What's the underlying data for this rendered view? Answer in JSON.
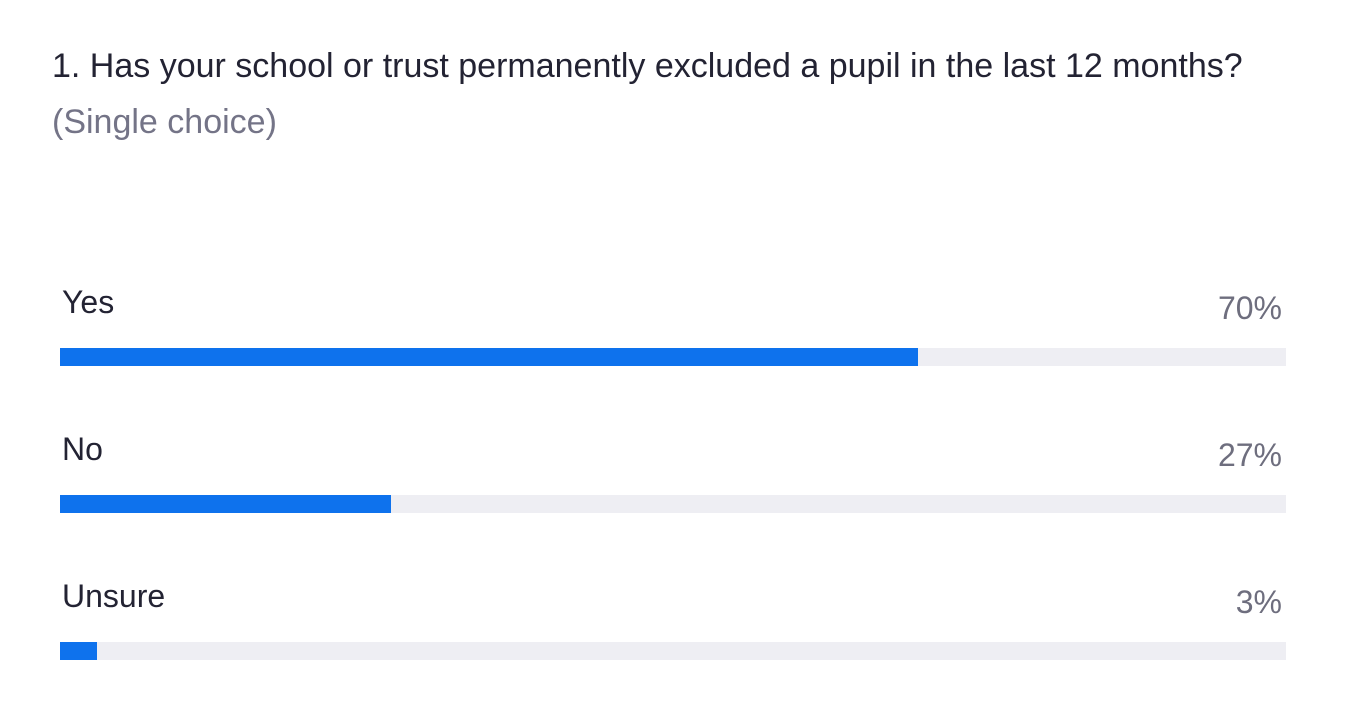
{
  "chart_data": {
    "type": "bar",
    "orientation": "horizontal",
    "title": "1. Has your school or trust permanently excluded a pupil in the last 12 months?",
    "subtitle": "(Single choice)",
    "categories": [
      "Yes",
      "No",
      "Unsure"
    ],
    "values": [
      70,
      27,
      3
    ],
    "value_labels": [
      "70%",
      "27%",
      "3%"
    ],
    "xlim": [
      0,
      100
    ],
    "color": "#0e72ed",
    "track_color": "#eeeef3"
  }
}
